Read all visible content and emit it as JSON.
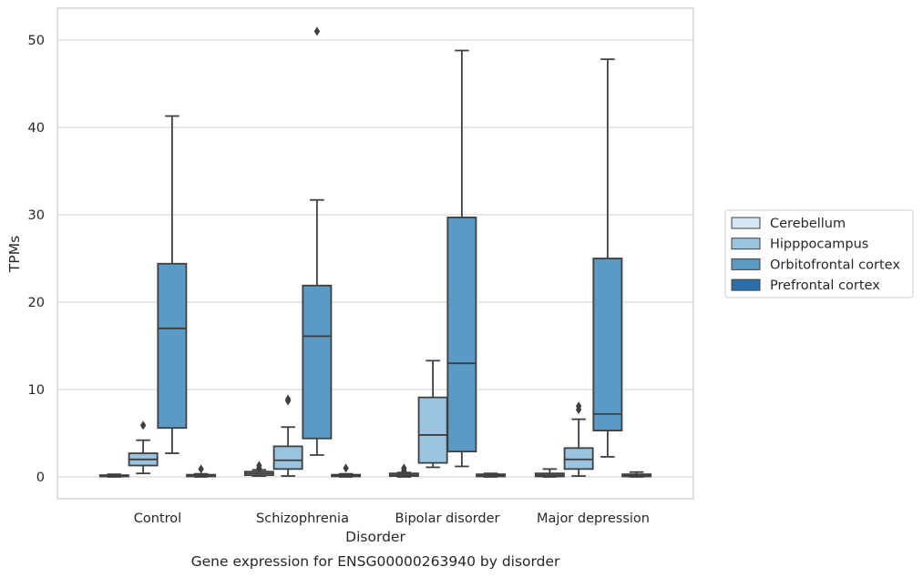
{
  "chart_data": {
    "type": "box",
    "title": "Gene expression for ENSG00000263940 by disorder",
    "xlabel": "Disorder",
    "ylabel": "TPMs",
    "ylim": [
      -2.5,
      53.5
    ],
    "yticks": [
      0,
      10,
      20,
      30,
      40,
      50
    ],
    "grid": "horizontal",
    "legend_placement": "right",
    "categories": [
      "Control",
      "Schizophrenia",
      "Bipolar disorder",
      "Major depression"
    ],
    "series": [
      {
        "name": "Cerebellum",
        "color": "#d5e5f2",
        "boxes": [
          {
            "min": 0,
            "q1": 0.05,
            "median": 0.1,
            "q3": 0.2,
            "max": 0.3,
            "outliers": []
          },
          {
            "min": 0.1,
            "q1": 0.2,
            "median": 0.4,
            "q3": 0.6,
            "max": 0.8,
            "outliers": [
              1.0,
              1.3
            ]
          },
          {
            "min": 0,
            "q1": 0.1,
            "median": 0.2,
            "q3": 0.4,
            "max": 0.5,
            "outliers": [
              0.7,
              1.0
            ]
          },
          {
            "min": 0,
            "q1": 0.05,
            "median": 0.2,
            "q3": 0.4,
            "max": 0.9,
            "outliers": []
          }
        ]
      },
      {
        "name": "Hipppocampus",
        "color": "#9ac3df",
        "boxes": [
          {
            "min": 0.4,
            "q1": 1.3,
            "median": 2.0,
            "q3": 2.7,
            "max": 4.2,
            "outliers": [
              5.9
            ]
          },
          {
            "min": 0.1,
            "q1": 0.9,
            "median": 1.9,
            "q3": 3.5,
            "max": 5.7,
            "outliers": [
              8.7,
              8.9
            ]
          },
          {
            "min": 1.1,
            "q1": 1.6,
            "median": 4.8,
            "q3": 9.1,
            "max": 13.3,
            "outliers": []
          },
          {
            "min": 0.1,
            "q1": 0.9,
            "median": 2.0,
            "q3": 3.3,
            "max": 6.6,
            "outliers": [
              7.7,
              8.1
            ]
          }
        ]
      },
      {
        "name": "Orbitofrontal cortex",
        "color": "#5b9ac4",
        "boxes": [
          {
            "min": 2.7,
            "q1": 5.6,
            "median": 17.0,
            "q3": 24.4,
            "max": 41.3,
            "outliers": []
          },
          {
            "min": 2.5,
            "q1": 4.4,
            "median": 16.1,
            "q3": 21.9,
            "max": 31.7,
            "outliers": [
              51.0
            ]
          },
          {
            "min": 1.2,
            "q1": 2.9,
            "median": 13.0,
            "q3": 29.7,
            "max": 48.8,
            "outliers": []
          },
          {
            "min": 2.3,
            "q1": 5.3,
            "median": 7.2,
            "q3": 25.0,
            "max": 47.8,
            "outliers": []
          }
        ]
      },
      {
        "name": "Prefrontal cortex",
        "color": "#2d6ea7",
        "boxes": [
          {
            "min": 0,
            "q1": 0.05,
            "median": 0.1,
            "q3": 0.25,
            "max": 0.35,
            "outliers": [
              0.9
            ]
          },
          {
            "min": 0,
            "q1": 0.05,
            "median": 0.1,
            "q3": 0.25,
            "max": 0.35,
            "outliers": [
              1.0
            ]
          },
          {
            "min": 0,
            "q1": 0.05,
            "median": 0.1,
            "q3": 0.3,
            "max": 0.4,
            "outliers": []
          },
          {
            "min": 0,
            "q1": 0.05,
            "median": 0.1,
            "q3": 0.3,
            "max": 0.55,
            "outliers": []
          }
        ]
      }
    ]
  }
}
